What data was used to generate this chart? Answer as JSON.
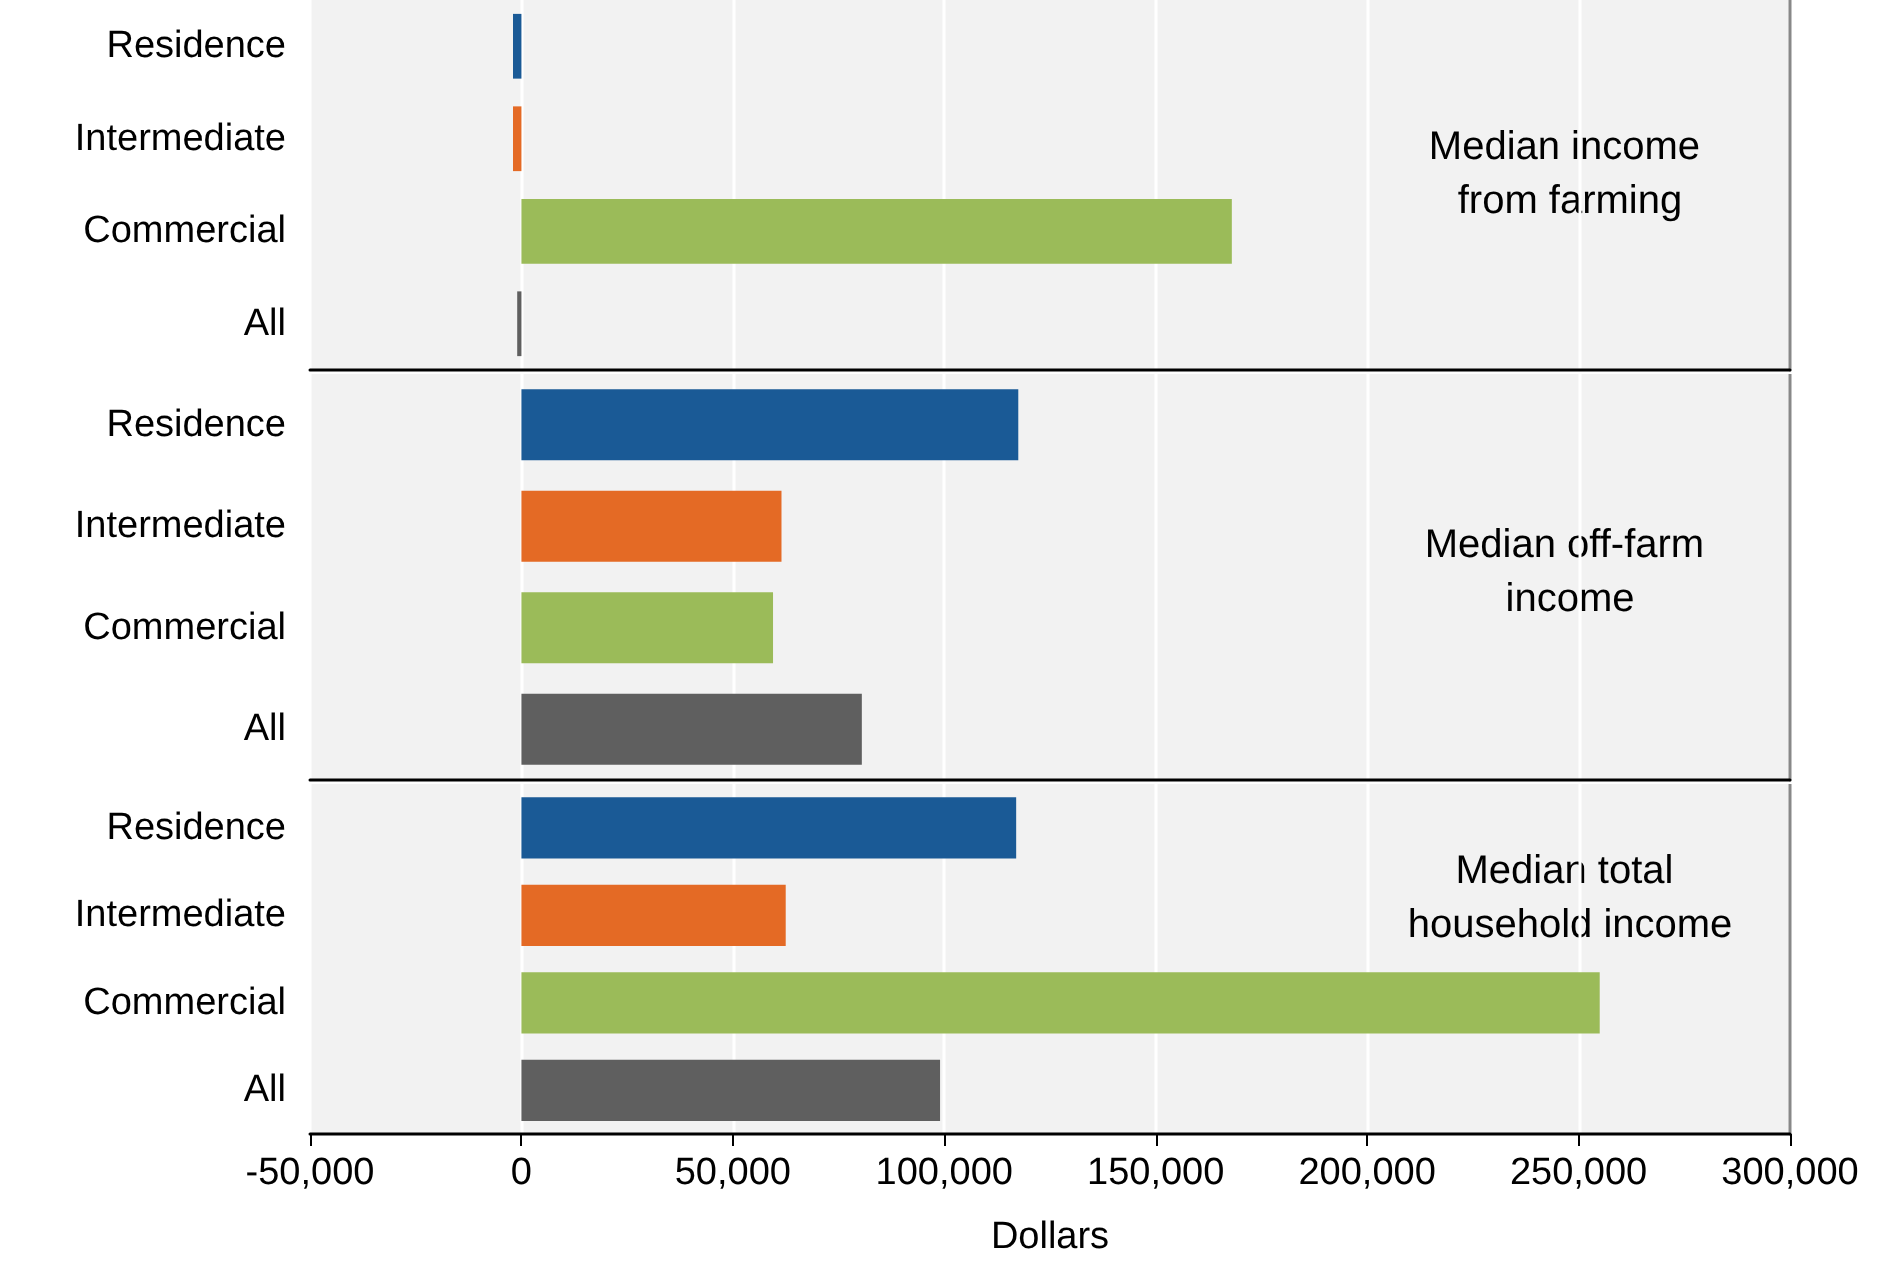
{
  "chart_data": [
    {
      "type": "bar",
      "orientation": "horizontal",
      "categories": [
        "Residence",
        "Intermediate",
        "Commercial",
        "All"
      ],
      "values": [
        -2000,
        -2000,
        168000,
        -1000
      ],
      "colors": [
        "#1a5a96",
        "#e46a25",
        "#9bbb59",
        "#5f5f5f"
      ],
      "xlim": [
        -50000,
        300000
      ],
      "xticks": [
        -50000,
        0,
        50000,
        100000,
        150000,
        200000,
        250000,
        300000
      ],
      "grid": "x",
      "tick_labels": "y",
      "annotations": [
        "Median income from farming"
      ]
    },
    {
      "type": "bar",
      "orientation": "horizontal",
      "categories": [
        "Residence",
        "Intermediate",
        "Commercial",
        "All"
      ],
      "values": [
        117500,
        61500,
        59500,
        80500
      ],
      "colors": [
        "#1a5a96",
        "#e46a25",
        "#9bbb59",
        "#5f5f5f"
      ],
      "xlim": [
        -50000,
        300000
      ],
      "xticks": [
        -50000,
        0,
        50000,
        100000,
        150000,
        200000,
        250000,
        300000
      ],
      "grid": "x",
      "tick_labels": "y",
      "annotations": [
        "Median off-farm income"
      ]
    },
    {
      "type": "bar",
      "orientation": "horizontal",
      "categories": [
        "Residence",
        "Intermediate",
        "Commercial",
        "All"
      ],
      "values": [
        117000,
        62500,
        255000,
        99000
      ],
      "colors": [
        "#1a5a96",
        "#e46a25",
        "#9bbb59",
        "#5f5f5f"
      ],
      "xlim": [
        -50000,
        300000
      ],
      "xticks": [
        {
          "value": -50000,
          "label": "-50,000"
        },
        0,
        {
          "value": 50000,
          "label": "50,000"
        },
        {
          "value": 100000,
          "label": "100,000"
        },
        {
          "value": 150000,
          "label": "150,000"
        },
        {
          "value": 200000,
          "label": "200,000"
        },
        {
          "value": 250000,
          "label": "250,000"
        },
        {
          "value": 300000,
          "label": "300,000"
        }
      ],
      "grid": "x",
      "xlabel": "Dollars",
      "annotations": [
        "Median total household income"
      ]
    }
  ]
}
